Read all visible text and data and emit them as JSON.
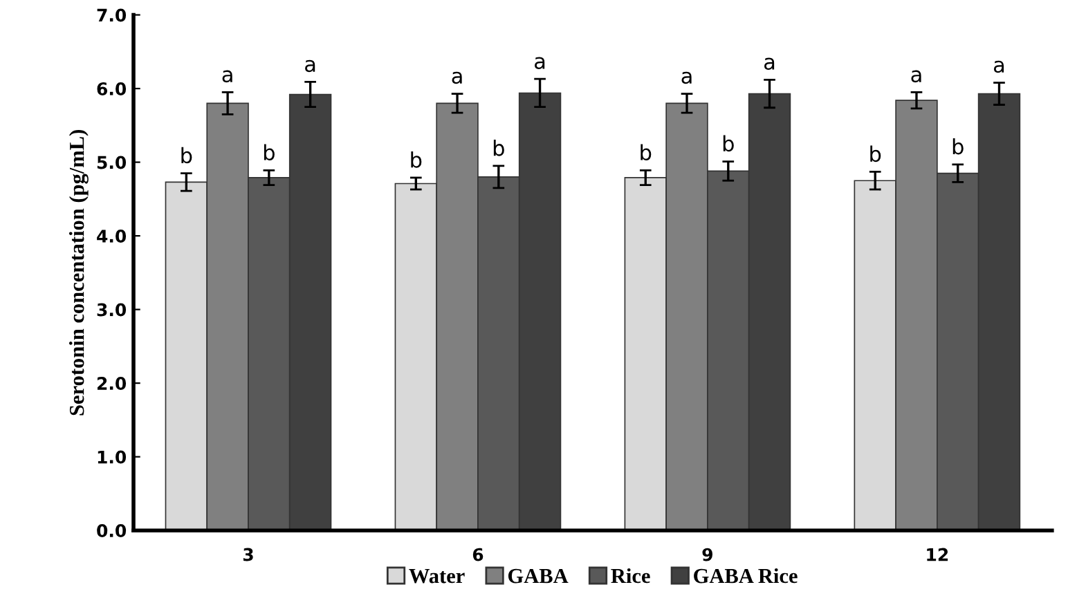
{
  "chart_data": {
    "type": "bar",
    "ylabel": "Serotonin concentation (pg/mL)",
    "categories": [
      "3",
      "6",
      "9",
      "12"
    ],
    "series": [
      {
        "name": "Water",
        "color": "#d9d9d9",
        "values": [
          4.73,
          4.71,
          4.79,
          4.75
        ],
        "errors": [
          0.12,
          0.08,
          0.1,
          0.12
        ],
        "value_labels": [
          "b",
          "b",
          "b",
          "b"
        ]
      },
      {
        "name": "GABA",
        "color": "#808080",
        "values": [
          5.8,
          5.8,
          5.8,
          5.84
        ],
        "errors": [
          0.15,
          0.13,
          0.13,
          0.11
        ],
        "value_labels": [
          "a",
          "a",
          "a",
          "a"
        ]
      },
      {
        "name": "Rice",
        "color": "#595959",
        "values": [
          4.79,
          4.8,
          4.88,
          4.85
        ],
        "errors": [
          0.1,
          0.15,
          0.13,
          0.12
        ],
        "value_labels": [
          "b",
          "b",
          "b",
          "b"
        ]
      },
      {
        "name": "GABA Rice",
        "color": "#404040",
        "values": [
          5.92,
          5.94,
          5.93,
          5.93
        ],
        "errors": [
          0.17,
          0.19,
          0.19,
          0.15
        ],
        "value_labels": [
          "a",
          "a",
          "a",
          "a"
        ]
      }
    ],
    "ylim": [
      0,
      7
    ],
    "yticks": [
      {
        "value": 0,
        "label": "0.0"
      },
      {
        "value": 1,
        "label": "1.0"
      },
      {
        "value": 2,
        "label": "2.0"
      },
      {
        "value": 3,
        "label": "3.0"
      },
      {
        "value": 4,
        "label": "4.0"
      },
      {
        "value": 5,
        "label": "5.0"
      },
      {
        "value": 6,
        "label": "6.0"
      },
      {
        "value": 7,
        "label": "7.0"
      }
    ],
    "grid": false,
    "legend": "bottom"
  }
}
